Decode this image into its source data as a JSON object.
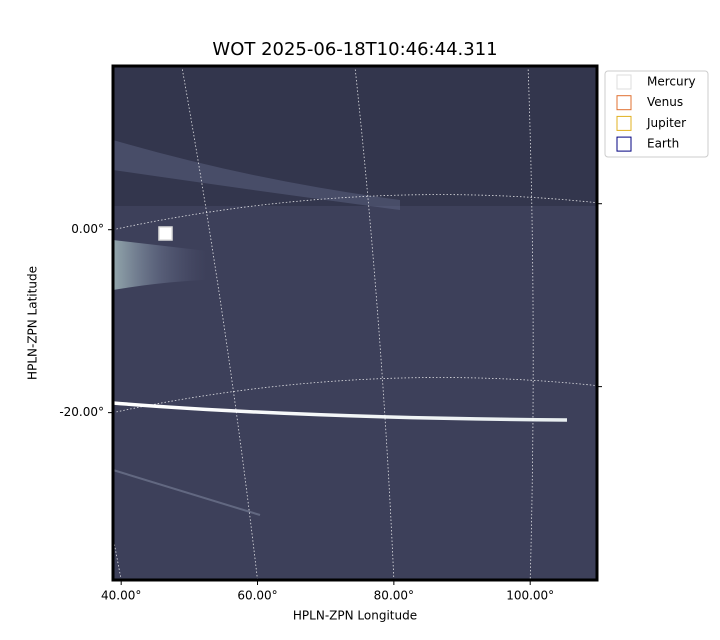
{
  "chart_data": {
    "type": "image",
    "title": "WOT 2025-06-18T10:46:44.311",
    "xlabel": "HPLN-ZPN Longitude",
    "ylabel": "HPLN-ZPN Latitude",
    "xlim": [
      38.8,
      109.8
    ],
    "ylim": [
      -38.3,
      17.9
    ],
    "xticks": [
      {
        "value": 40,
        "label": "40.00°"
      },
      {
        "value": 60,
        "label": "60.00°"
      },
      {
        "value": 80,
        "label": "80.00°"
      },
      {
        "value": 100,
        "label": "100.00°"
      }
    ],
    "yticks": [
      {
        "value": 0,
        "label": "0.00°"
      },
      {
        "value": -20,
        "label": "-20.00°"
      }
    ],
    "grid": true,
    "legend_position": "outside-upper-right",
    "series": [
      {
        "name": "Mercury",
        "color": "#dddddd"
      },
      {
        "name": "Venus",
        "color": "#e07030"
      },
      {
        "name": "Jupiter",
        "color": "#e0b020"
      },
      {
        "name": "Earth",
        "color": "#000080"
      }
    ]
  }
}
